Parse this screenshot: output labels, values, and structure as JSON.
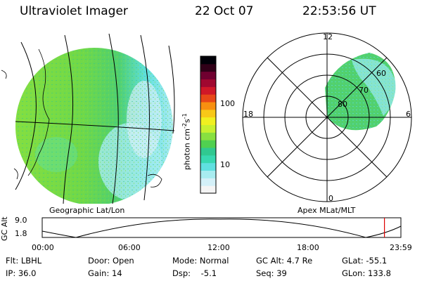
{
  "header": {
    "title": "Ultraviolet Imager",
    "date": "22 Oct 07",
    "time": "22:53:56 UT"
  },
  "colorbar": {
    "label": "photon cm",
    "label_sup1": "-2",
    "label_s": "s",
    "label_sup2": "-1",
    "ticks": [
      {
        "text": "100",
        "value": 100
      },
      {
        "text": "10",
        "value": 10
      }
    ],
    "colors": [
      "#f4f4f4",
      "#d4f0f8",
      "#a8ecf0",
      "#60e0e0",
      "#38d8b0",
      "#30c890",
      "#50d050",
      "#88e040",
      "#c8f030",
      "#f0f020",
      "#f8c818",
      "#f89010",
      "#e84818",
      "#d01828",
      "#a00830",
      "#700030",
      "#300018",
      "#000008"
    ]
  },
  "left_panel": {
    "label": "Geographic Lat/Lon"
  },
  "right_panel": {
    "label": "Apex  MLat/MLT",
    "mlt_labels": [
      "12",
      "18",
      "6",
      "0"
    ],
    "lat_labels": [
      "60",
      "70",
      "80"
    ]
  },
  "timeline": {
    "ylabel": "GC Alt",
    "yticks": [
      "9.0",
      "1.8"
    ],
    "xticks": [
      "00:00",
      "06:00",
      "12:00",
      "18:00",
      "23:59"
    ],
    "marker_color": "#dd0000",
    "marker_hour": 22.9
  },
  "status": {
    "flt": "Flt: LBHL",
    "ip": "IP: 36.0",
    "door": "Door: Open",
    "gain": "Gain: 14",
    "mode": "Mode: Normal",
    "dsp": "Dsp:    -5.1",
    "gcalt": "GC Alt: 4.7 Re",
    "seq": "Seq: 39",
    "glat": "GLat: -55.1",
    "glon": "GLon: 133.8"
  }
}
